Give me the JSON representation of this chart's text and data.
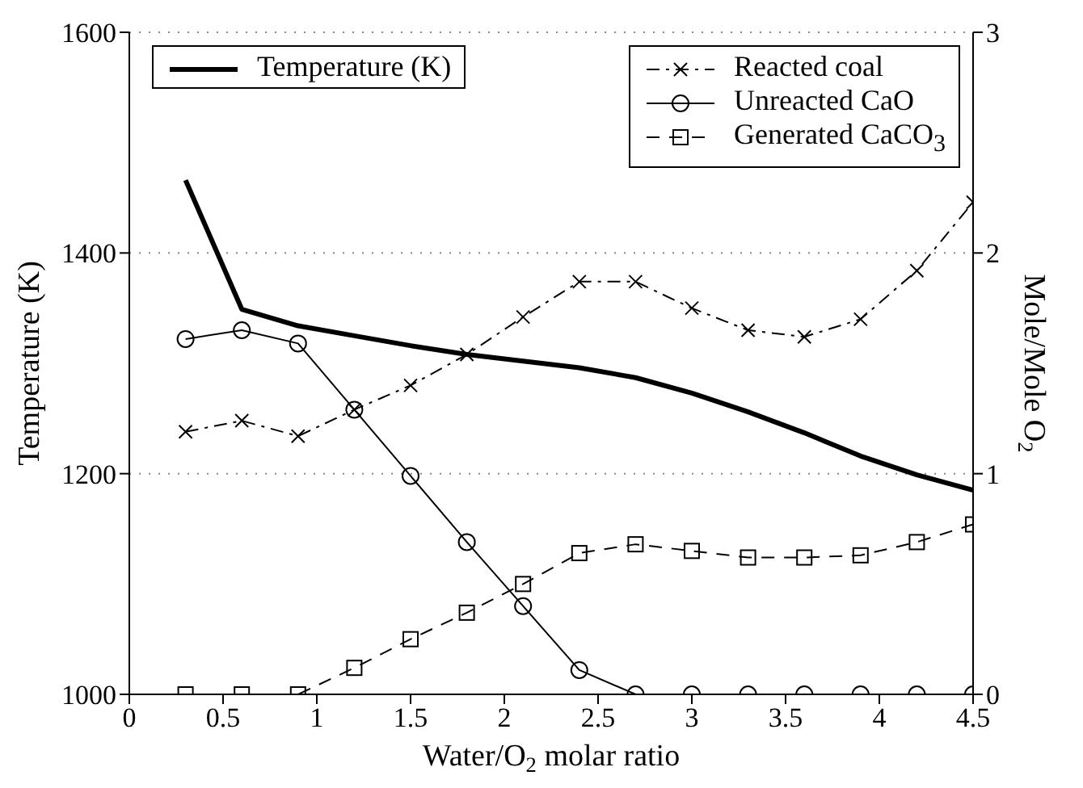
{
  "chart_data": {
    "type": "line",
    "xlabel": "Water/O$_{2}$ molar ratio",
    "ylabel": "Temperature (K)",
    "y2label": "Mole/Mole O$_{2}$",
    "x": [
      0.3,
      0.6,
      0.9,
      1.2,
      1.5,
      1.8,
      2.1,
      2.4,
      2.7,
      3.0,
      3.3,
      3.6,
      3.9,
      4.2,
      4.5
    ],
    "series": [
      {
        "name": "Temperature (K)",
        "color": "#000000",
        "marker": "none",
        "line_style": "solid",
        "values": [
          1466,
          1349,
          1334,
          1325,
          1316,
          1308,
          1302,
          1296,
          1287,
          1273,
          1256,
          1237,
          1216,
          1199,
          1185
        ]
      },
      {
        "name": "Reacted coal",
        "color": "#000000",
        "axis": "y2",
        "marker": "cross",
        "line_style": "dashdot",
        "values": [
          1.19,
          1.24,
          1.17,
          1.29,
          1.4,
          1.54,
          1.71,
          1.87,
          1.87,
          1.75,
          1.65,
          1.62,
          1.7,
          1.92,
          2.23
        ]
      },
      {
        "name": "Unreacted CaO",
        "color": "#000000",
        "axis": "y2",
        "marker": "circle",
        "line_style": "solid",
        "values": [
          1.61,
          1.65,
          1.59,
          1.29,
          0.99,
          0.69,
          0.4,
          0.11,
          0,
          0,
          0,
          0,
          0,
          0,
          0
        ]
      },
      {
        "name": "Generated CaCO$_{3}$",
        "color": "#000000",
        "axis": "y2",
        "marker": "square",
        "line_style": "dashed",
        "values": [
          0,
          0,
          0,
          0.12,
          0.25,
          0.37,
          0.5,
          0.64,
          0.68,
          0.65,
          0.62,
          0.62,
          0.63,
          0.69,
          0.77
        ]
      }
    ],
    "xlim": [
      0,
      4.5
    ],
    "xticks": [
      0,
      0.5,
      1,
      1.5,
      2,
      2.5,
      3,
      3.5,
      4,
      4.5
    ],
    "ylim": [
      1000,
      1600
    ],
    "yticks": [
      1000,
      1200,
      1400,
      1600
    ],
    "y2lim": [
      0,
      3
    ],
    "y2ticks": [
      0,
      1,
      2,
      3
    ],
    "grid": "y",
    "legend": "top"
  }
}
